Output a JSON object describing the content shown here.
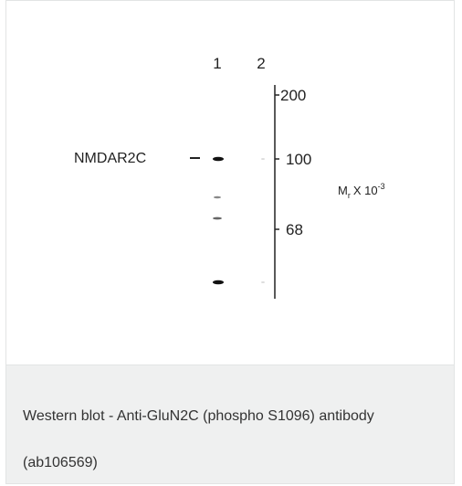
{
  "blot": {
    "lanes": [
      "1",
      "2"
    ],
    "band_label": "NMDAR2C",
    "markers": [
      "200",
      "100",
      "68"
    ],
    "unit": {
      "symbol": "M",
      "subscript": "r",
      "multiplier": "X 10",
      "exponent": "-3"
    }
  },
  "caption": "Western blot - Anti-GluN2C (phospho S1096) antibody (ab106569)"
}
